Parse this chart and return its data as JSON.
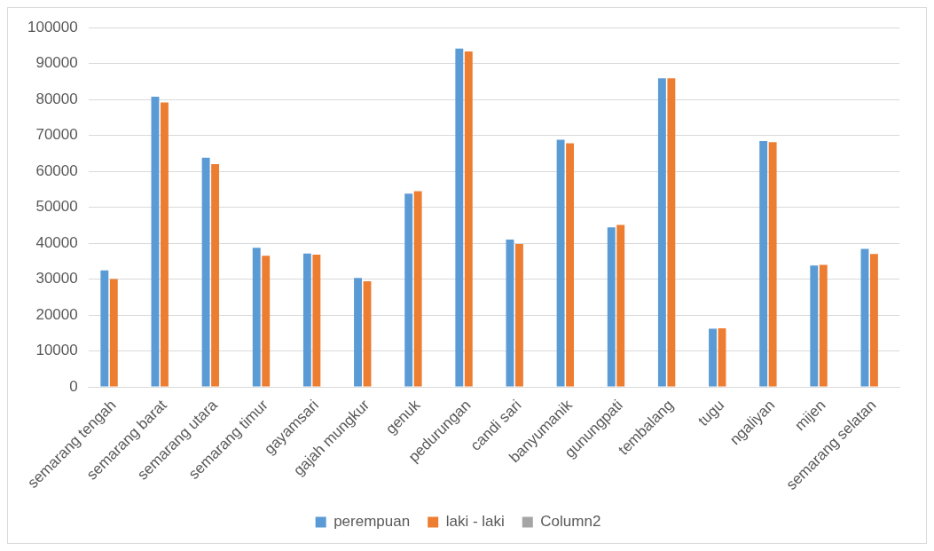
{
  "chart_data": {
    "type": "bar",
    "categories": [
      "semarang tengah",
      "semarang barat",
      "semarang utara",
      "semarang timur",
      "gayamsari",
      "gajah mungkur",
      "genuk",
      "pedurungan",
      "candi sari",
      "banyumanik",
      "gunungpati",
      "tembalang",
      "tugu",
      "ngaliyan",
      "mijen",
      "semarang selatan"
    ],
    "series": [
      {
        "name": "perempuan",
        "color": "#5b9bd5",
        "values": [
          32400,
          80800,
          63800,
          38700,
          37100,
          30300,
          53800,
          94200,
          41000,
          68800,
          44400,
          85900,
          16200,
          68400,
          33800,
          38400
        ]
      },
      {
        "name": "laki - laki",
        "color": "#ed7d31",
        "values": [
          30000,
          79200,
          62000,
          36500,
          36800,
          29400,
          54500,
          93400,
          39800,
          67800,
          45100,
          85900,
          16300,
          68100,
          34000,
          37000
        ]
      },
      {
        "name": "Column2",
        "color": "#a5a5a5",
        "values": [
          null,
          null,
          null,
          null,
          null,
          null,
          null,
          null,
          null,
          null,
          null,
          null,
          null,
          null,
          null,
          null
        ]
      }
    ],
    "ylim": [
      0,
      100000
    ],
    "yticks": [
      0,
      10000,
      20000,
      30000,
      40000,
      50000,
      60000,
      70000,
      80000,
      90000,
      100000
    ],
    "grid": "y",
    "legend": "bottom"
  }
}
